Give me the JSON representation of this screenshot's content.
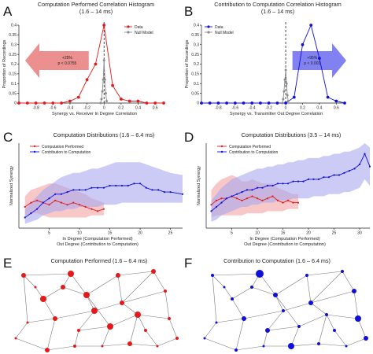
{
  "colors": {
    "red": "#e31a1c",
    "blue": "#1010d8",
    "gray": "#8c8c8c",
    "red_band": "#f4a3a3",
    "blue_band": "#a9a9ef"
  },
  "chart_data": [
    {
      "panel": "A",
      "type": "line",
      "title": "Computation Performed Correlation Histogram",
      "subtitle": "(1.6 – 14 ms)",
      "xlabel": "Synergy vs. Receiver In Degree Correlation",
      "ylabel": "Proportion of Recordings",
      "xlim": [
        -1.0,
        0.7
      ],
      "ylim": [
        0,
        0.4
      ],
      "xticks": [
        -0.8,
        -0.6,
        -0.4,
        -0.2,
        0,
        0.2,
        0.4,
        0.6
      ],
      "yticks": [
        0,
        0.05,
        0.1,
        0.15,
        0.2,
        0.25,
        0.3,
        0.35,
        0.4
      ],
      "series": [
        {
          "name": "Data",
          "color": "#e31a1c",
          "x": [
            -1.0,
            -0.9,
            -0.8,
            -0.7,
            -0.6,
            -0.5,
            -0.4,
            -0.3,
            -0.2,
            -0.1,
            0.0,
            0.1,
            0.2,
            0.3,
            0.4,
            0.5,
            0.6,
            0.7
          ],
          "y": [
            0,
            0,
            0,
            0,
            0,
            0,
            0.01,
            0.03,
            0.12,
            0.2,
            0.4,
            0.09,
            0.02,
            0.01,
            0.01,
            0,
            0,
            0
          ]
        },
        {
          "name": "Null Model",
          "color": "#8c8c8c",
          "x": [
            -0.04,
            -0.03,
            -0.02,
            -0.01,
            0.0,
            0.01,
            0.02,
            0.03
          ],
          "y": [
            0.0,
            0.02,
            0.06,
            0.12,
            0.22,
            0.12,
            0.05,
            0.01
          ]
        }
      ],
      "vline_x": 0.0,
      "arrow": {
        "direction": "left",
        "color": "#e87b7b",
        "text": [
          "+25%",
          "p < 0.0755"
        ]
      },
      "legend": "top-right"
    },
    {
      "panel": "B",
      "type": "line",
      "title": "Contribution to Computation Correlation Histogram",
      "subtitle": "(1.6 – 14 ms)",
      "xlabel": "Synergy vs. Transmitter Out Degree Correlation",
      "ylabel": "Proportion of Recordings",
      "xlim": [
        -1.0,
        0.7
      ],
      "ylim": [
        0,
        0.4
      ],
      "xticks": [
        -0.8,
        -0.6,
        -0.4,
        -0.2,
        0,
        0.2,
        0.4,
        0.6
      ],
      "yticks": [
        0,
        0.05,
        0.1,
        0.15,
        0.2,
        0.25,
        0.3,
        0.35,
        0.4
      ],
      "series": [
        {
          "name": "Data",
          "color": "#1010d8",
          "x": [
            -1.0,
            -0.9,
            -0.8,
            -0.7,
            -0.6,
            -0.5,
            -0.4,
            -0.3,
            -0.2,
            -0.1,
            0.0,
            0.1,
            0.2,
            0.3,
            0.4,
            0.5,
            0.6,
            0.7
          ],
          "y": [
            0,
            0,
            0,
            0,
            0,
            0,
            0,
            0,
            0,
            0,
            0,
            0.03,
            0.3,
            0.4,
            0.23,
            0.03,
            0.01,
            0
          ]
        },
        {
          "name": "Null Model",
          "color": "#8c8c8c",
          "x": [
            -0.04,
            -0.03,
            -0.02,
            -0.01,
            0.0,
            0.01,
            0.02,
            0.03
          ],
          "y": [
            0.0,
            0.02,
            0.06,
            0.12,
            0.17,
            0.1,
            0.04,
            0.01
          ]
        }
      ],
      "vline_x": 0.0,
      "arrow": {
        "direction": "right",
        "color": "#6b6bf0",
        "text": [
          "+95%",
          "p < 0.001"
        ]
      },
      "legend": "top-left"
    },
    {
      "panel": "C",
      "type": "line",
      "title": "Computation Distributions",
      "subtitle": "(1.6 – 6.4 ms)",
      "xlabel": "In Degree (Computation Performed)",
      "xlabel2": "Out Degree (Contribution to Computation)",
      "ylabel": "Normalized Synergy",
      "xlim": [
        0,
        27
      ],
      "ylim": [
        0,
        0.04
      ],
      "xticks": [
        5,
        10,
        15,
        20,
        25
      ],
      "series": [
        {
          "name": "Computation Performed",
          "color": "#e31a1c",
          "x": [
            1,
            2,
            3,
            4,
            5,
            6,
            7,
            8,
            9,
            10,
            11,
            12,
            13,
            14
          ],
          "y": [
            0.01,
            0.012,
            0.013,
            0.012,
            0.011,
            0.013,
            0.012,
            0.011,
            0.012,
            0.011,
            0.01,
            0.009,
            0.008,
            0.009
          ],
          "band_low": [
            0.006,
            0.007,
            0.007,
            0.006,
            0.005,
            0.005,
            0.005,
            0.005,
            0.005,
            0.005,
            0.005,
            0.006,
            0.006,
            0.006
          ],
          "band_high": [
            0.015,
            0.018,
            0.019,
            0.02,
            0.021,
            0.021,
            0.02,
            0.019,
            0.018,
            0.017,
            0.016,
            0.014,
            0.013,
            0.012
          ]
        },
        {
          "name": "Contribution to Computation",
          "color": "#1010d8",
          "x": [
            1,
            2,
            3,
            4,
            5,
            6,
            7,
            8,
            9,
            10,
            11,
            12,
            13,
            14,
            15,
            16,
            17,
            18,
            19,
            20,
            21,
            22,
            23,
            24,
            25,
            27
          ],
          "y": [
            0.005,
            0.007,
            0.009,
            0.012,
            0.014,
            0.016,
            0.016,
            0.017,
            0.018,
            0.018,
            0.018,
            0.019,
            0.019,
            0.019,
            0.02,
            0.02,
            0.02,
            0.02,
            0.021,
            0.021,
            0.019,
            0.018,
            0.018,
            0.017,
            0.017,
            0.016
          ],
          "band_low": [
            0.002,
            0.003,
            0.004,
            0.006,
            0.007,
            0.008,
            0.008,
            0.009,
            0.009,
            0.01,
            0.01,
            0.01,
            0.01,
            0.011,
            0.011,
            0.011,
            0.012,
            0.012,
            0.012,
            0.012,
            0.012,
            0.012,
            0.012,
            0.012,
            0.012,
            0.012
          ],
          "band_high": [
            0.009,
            0.012,
            0.015,
            0.018,
            0.02,
            0.022,
            0.024,
            0.025,
            0.026,
            0.026,
            0.027,
            0.028,
            0.028,
            0.029,
            0.03,
            0.031,
            0.031,
            0.031,
            0.031,
            0.031,
            0.03,
            0.029,
            0.028,
            0.027,
            0.026,
            0.025
          ]
        }
      ],
      "legend": "top-left"
    },
    {
      "panel": "D",
      "type": "line",
      "title": "Computation Distributions",
      "subtitle": "(3.5 – 14 ms)",
      "xlabel": "In Degree (Computation Performed)",
      "xlabel2": "Out Degree (Contribution to Computation)",
      "ylabel": "Normalized Synergy",
      "xlim": [
        0,
        32
      ],
      "ylim": [
        0,
        0.04
      ],
      "xticks": [
        5,
        10,
        15,
        20,
        25,
        30
      ],
      "series": [
        {
          "name": "Computation Performed",
          "color": "#e31a1c",
          "x": [
            1,
            2,
            3,
            4,
            5,
            6,
            7,
            8,
            9,
            10,
            11,
            12,
            13,
            14,
            15,
            16,
            17,
            18
          ],
          "y": [
            0.011,
            0.013,
            0.014,
            0.014,
            0.015,
            0.014,
            0.013,
            0.014,
            0.015,
            0.014,
            0.013,
            0.014,
            0.015,
            0.013,
            0.012,
            0.013,
            0.012,
            0.012
          ],
          "band_low": [
            0.005,
            0.006,
            0.006,
            0.006,
            0.006,
            0.006,
            0.006,
            0.007,
            0.007,
            0.007,
            0.007,
            0.008,
            0.008,
            0.008,
            0.008,
            0.009,
            0.009,
            0.009
          ],
          "band_high": [
            0.018,
            0.021,
            0.023,
            0.024,
            0.025,
            0.024,
            0.022,
            0.022,
            0.023,
            0.022,
            0.021,
            0.021,
            0.021,
            0.019,
            0.018,
            0.017,
            0.016,
            0.016
          ]
        },
        {
          "name": "Contribution to Computation",
          "color": "#1010d8",
          "x": [
            1,
            2,
            3,
            4,
            5,
            6,
            7,
            8,
            9,
            10,
            11,
            12,
            13,
            14,
            15,
            16,
            17,
            18,
            19,
            20,
            21,
            22,
            23,
            24,
            25,
            26,
            27,
            28,
            29,
            30,
            31,
            32
          ],
          "y": [
            0.008,
            0.01,
            0.012,
            0.014,
            0.015,
            0.016,
            0.017,
            0.018,
            0.018,
            0.019,
            0.019,
            0.02,
            0.02,
            0.021,
            0.021,
            0.021,
            0.022,
            0.022,
            0.022,
            0.023,
            0.023,
            0.023,
            0.024,
            0.024,
            0.025,
            0.025,
            0.026,
            0.027,
            0.028,
            0.03,
            0.035,
            0.029
          ],
          "band_low": [
            0.003,
            0.004,
            0.006,
            0.007,
            0.008,
            0.009,
            0.01,
            0.01,
            0.011,
            0.011,
            0.012,
            0.012,
            0.012,
            0.013,
            0.013,
            0.013,
            0.014,
            0.014,
            0.014,
            0.014,
            0.015,
            0.015,
            0.015,
            0.016,
            0.016,
            0.016,
            0.017,
            0.017,
            0.018,
            0.019,
            0.023,
            0.02
          ],
          "band_high": [
            0.013,
            0.016,
            0.019,
            0.021,
            0.023,
            0.024,
            0.025,
            0.026,
            0.027,
            0.028,
            0.028,
            0.029,
            0.029,
            0.03,
            0.03,
            0.031,
            0.031,
            0.032,
            0.032,
            0.033,
            0.033,
            0.033,
            0.034,
            0.034,
            0.035,
            0.035,
            0.036,
            0.036,
            0.037,
            0.038,
            0.04,
            0.038
          ]
        }
      ],
      "legend": "top-left"
    }
  ],
  "panels": {
    "A": "A",
    "B": "B",
    "C": "C",
    "D": "D",
    "E": "E",
    "F": "F"
  },
  "networks": {
    "E": {
      "title": "Computation Performed (1.6 – 6.4 ms)",
      "color": "#e31a1c"
    },
    "F": {
      "title": "Contribution to Computation (1.6 – 6.4 ms)",
      "color": "#1010d8"
    }
  }
}
